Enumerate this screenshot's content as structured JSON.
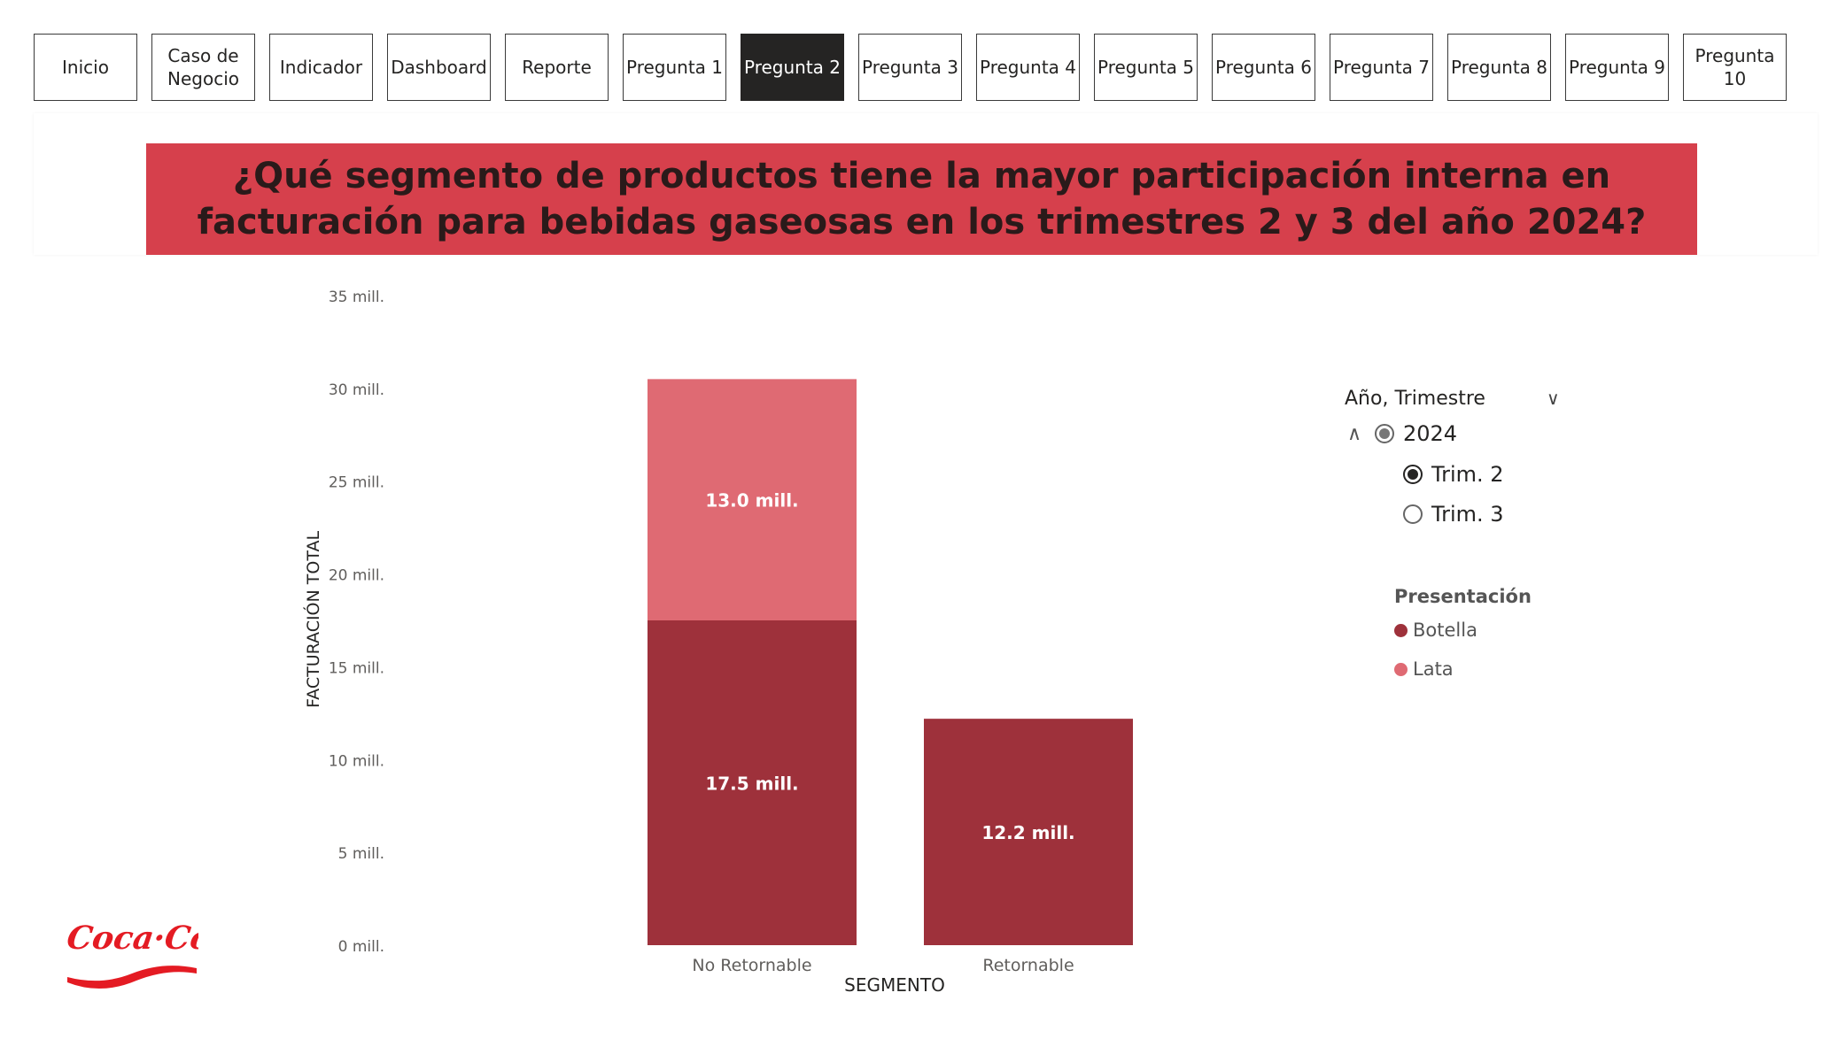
{
  "nav": {
    "buttons": [
      {
        "label": "Inicio",
        "active": false
      },
      {
        "label": "Caso de\nNegocio",
        "active": false
      },
      {
        "label": "Indicador",
        "active": false
      },
      {
        "label": "Dashboard",
        "active": false
      },
      {
        "label": "Reporte",
        "active": false
      },
      {
        "label": "Pregunta 1",
        "active": false
      },
      {
        "label": "Pregunta 2",
        "active": true
      },
      {
        "label": "Pregunta 3",
        "active": false
      },
      {
        "label": "Pregunta 4",
        "active": false
      },
      {
        "label": "Pregunta 5",
        "active": false
      },
      {
        "label": "Pregunta 6",
        "active": false
      },
      {
        "label": "Pregunta 7",
        "active": false
      },
      {
        "label": "Pregunta 8",
        "active": false
      },
      {
        "label": "Pregunta 9",
        "active": false
      },
      {
        "label": "Pregunta 10",
        "active": false
      }
    ]
  },
  "question": {
    "text": "¿Qué segmento de productos tiene la mayor participación interna en facturación para bebidas gaseosas en los trimestres 2 y 3 del año 2024?"
  },
  "colors": {
    "title_bg": "#d6404c",
    "botella": "#9e313b",
    "lata": "#df6a73",
    "nav_active": "#252423"
  },
  "slicer": {
    "title": "Año, Trimestre",
    "year": {
      "label": "2024",
      "state": "partial"
    },
    "quarters": [
      {
        "label": "Trim. 2",
        "selected": true
      },
      {
        "label": "Trim. 3",
        "selected": false
      }
    ]
  },
  "legend": {
    "title": "Presentación",
    "items": [
      {
        "label": "Botella",
        "color": "#9e313b"
      },
      {
        "label": "Lata",
        "color": "#df6a73"
      }
    ]
  },
  "chart_data": {
    "type": "bar",
    "stacked": true,
    "xlabel": "SEGMENTO",
    "ylabel": "FACTURACIÓN TOTAL",
    "categories": [
      "No Retornable",
      "Retornable"
    ],
    "series": [
      {
        "name": "Botella",
        "values": [
          17.5,
          12.2
        ],
        "labels": [
          "17.5 mill.",
          "12.2 mill."
        ],
        "color": "#9e313b"
      },
      {
        "name": "Lata",
        "values": [
          13.0,
          0
        ],
        "labels": [
          "13.0 mill.",
          ""
        ],
        "color": "#df6a73"
      }
    ],
    "ylim": [
      0,
      35
    ],
    "yticks": [
      0,
      5,
      10,
      15,
      20,
      25,
      30,
      35
    ],
    "ytick_labels": [
      "0 mill.",
      "5 mill.",
      "10 mill.",
      "15 mill.",
      "20 mill.",
      "25 mill.",
      "30 mill.",
      "35 mill."
    ],
    "grid": false,
    "legend_position": "right"
  }
}
